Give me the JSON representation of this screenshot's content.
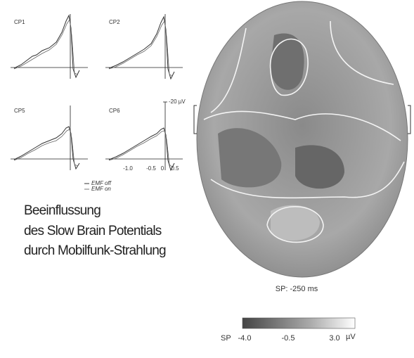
{
  "waveforms": {
    "panels": [
      {
        "label": "CP1"
      },
      {
        "label": "CP2"
      },
      {
        "label": "CP5"
      },
      {
        "label": "CP6"
      }
    ],
    "amplitude_label": "-20 µV",
    "time_ticks": [
      "-1.0",
      "-0.5",
      "0",
      "0.5"
    ],
    "legend": [
      "EMF off",
      "EMF on"
    ]
  },
  "caption": [
    "Beeinflussung",
    "des Slow Brain Potentials",
    "durch Mobilfunk-Strahlung"
  ],
  "map": {
    "label": "SP: -250 ms",
    "colorbar": {
      "name": "SP",
      "ticks": [
        "-4.0",
        "-0.5",
        "3.0"
      ],
      "unit": "µV"
    }
  }
}
